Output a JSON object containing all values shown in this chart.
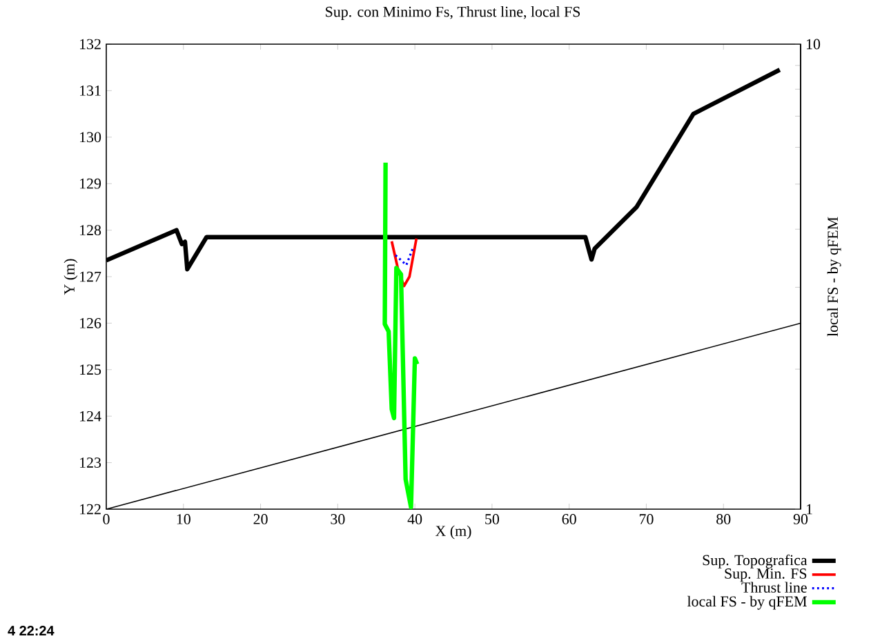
{
  "chart_data": {
    "type": "line",
    "title": "Sup. con Minimo Fs, Thrust line, local FS",
    "xlabel": "X (m)",
    "ylabel": "Y (m)",
    "y2label": "local FS - by qFEM",
    "xlim": [
      0,
      90
    ],
    "ylim": [
      122,
      132
    ],
    "y2lim": [
      1,
      10
    ],
    "log": "y2",
    "xticks": [
      0,
      10,
      20,
      30,
      40,
      50,
      60,
      70,
      80,
      90
    ],
    "yticks": [
      122,
      123,
      124,
      125,
      126,
      127,
      128,
      129,
      130,
      131,
      132
    ],
    "y2ticks": [
      1,
      10
    ],
    "legend": "bottom right",
    "grid": false,
    "marker": "none",
    "annotations": [
      "4 22:24"
    ],
    "series": [
      {
        "name": "Sup. Topografica",
        "color": "#000000",
        "line_style": "solid",
        "x": [
          0,
          9.1,
          9.8,
          10.2,
          10.5,
          13.0,
          62.1,
          62.9,
          63.3,
          68.75,
          76.1,
          87.3
        ],
        "values": [
          127.35,
          128.0,
          127.7,
          127.75,
          127.16,
          127.85,
          127.85,
          127.37,
          127.6,
          128.5,
          130.5,
          131.45
        ]
      },
      {
        "name": "Sup. Min. FS",
        "color": "#ff0000",
        "line_style": "solid",
        "x": [
          37.0,
          37.9,
          38.6,
          39.3,
          40.2
        ],
        "values": [
          127.76,
          127.1,
          126.8,
          127.0,
          127.82
        ]
      },
      {
        "name": "Thrust line",
        "color": "#0000ff",
        "line_style": "dotted",
        "x": [
          37.5,
          38.9,
          39.8
        ],
        "values": [
          127.46,
          127.25,
          127.64
        ]
      },
      {
        "name": "local FS - by qFEM",
        "color": "#00ff00",
        "line_style": "solid",
        "axis": "y2",
        "x": [
          36.2,
          36.1,
          36.6,
          37.0,
          37.3,
          37.6,
          38.2,
          38.8,
          39.5,
          40.0,
          40.3
        ],
        "values": [
          5.56,
          2.5,
          2.41,
          1.64,
          1.57,
          3.3,
          3.2,
          1.16,
          1.01,
          2.11,
          2.05
        ]
      },
      {
        "color": "#000000",
        "line_style": "solid",
        "x": [
          0,
          90
        ],
        "values": [
          122,
          126
        ]
      }
    ]
  }
}
